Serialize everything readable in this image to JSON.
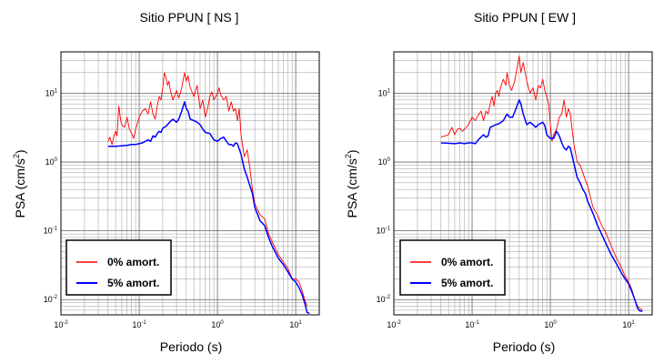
{
  "chart_data": [
    {
      "type": "line",
      "title": "Sitio PPUN [ NS ]",
      "xlabel": "Periodo (s)",
      "ylabel_main": "PSA (cm/s",
      "ylabel_sup": "2",
      "ylabel_close": ")",
      "x_scale": "log",
      "y_scale": "log",
      "xlim": [
        0.01,
        20
      ],
      "ylim": [
        0.006,
        40
      ],
      "grid": true,
      "legend_position": "bottom-left",
      "series": [
        {
          "name": "0% amort.",
          "color": "#ff0000",
          "points": [
            [
              0.04,
              2.0
            ],
            [
              0.042,
              2.3
            ],
            [
              0.045,
              1.8
            ],
            [
              0.048,
              2.5
            ],
            [
              0.05,
              2.8
            ],
            [
              0.052,
              2.4
            ],
            [
              0.055,
              6.5
            ],
            [
              0.058,
              4.0
            ],
            [
              0.06,
              3.5
            ],
            [
              0.065,
              3.2
            ],
            [
              0.07,
              4.5
            ],
            [
              0.075,
              3.0
            ],
            [
              0.08,
              2.6
            ],
            [
              0.085,
              2.2
            ],
            [
              0.09,
              3.0
            ],
            [
              0.1,
              4.5
            ],
            [
              0.11,
              5.5
            ],
            [
              0.12,
              6.0
            ],
            [
              0.13,
              5.0
            ],
            [
              0.14,
              7.5
            ],
            [
              0.15,
              5.0
            ],
            [
              0.16,
              4.2
            ],
            [
              0.17,
              6.5
            ],
            [
              0.18,
              9.0
            ],
            [
              0.19,
              8.0
            ],
            [
              0.2,
              12.0
            ],
            [
              0.21,
              20.0
            ],
            [
              0.22,
              17.0
            ],
            [
              0.23,
              13.0
            ],
            [
              0.24,
              15.0
            ],
            [
              0.25,
              11.0
            ],
            [
              0.27,
              8.0
            ],
            [
              0.3,
              11.0
            ],
            [
              0.32,
              8.5
            ],
            [
              0.35,
              12.0
            ],
            [
              0.38,
              20.0
            ],
            [
              0.4,
              15.0
            ],
            [
              0.42,
              18.0
            ],
            [
              0.45,
              12.0
            ],
            [
              0.5,
              9.0
            ],
            [
              0.55,
              13.0
            ],
            [
              0.6,
              6.0
            ],
            [
              0.65,
              8.0
            ],
            [
              0.7,
              4.5
            ],
            [
              0.75,
              6.0
            ],
            [
              0.8,
              9.0
            ],
            [
              0.85,
              10.5
            ],
            [
              0.9,
              8.0
            ],
            [
              0.95,
              9.0
            ],
            [
              1.0,
              10.0
            ],
            [
              1.05,
              12.0
            ],
            [
              1.1,
              9.5
            ],
            [
              1.2,
              8.0
            ],
            [
              1.3,
              9.0
            ],
            [
              1.4,
              5.5
            ],
            [
              1.5,
              7.5
            ],
            [
              1.6,
              5.5
            ],
            [
              1.7,
              6.0
            ],
            [
              1.8,
              4.0
            ],
            [
              1.9,
              6.0
            ],
            [
              2.0,
              2.5
            ],
            [
              2.2,
              1.2
            ],
            [
              2.4,
              1.5
            ],
            [
              2.6,
              0.8
            ],
            [
              2.8,
              0.4
            ],
            [
              3.0,
              0.25
            ],
            [
              3.5,
              0.17
            ],
            [
              4.0,
              0.15
            ],
            [
              4.5,
              0.09
            ],
            [
              5.0,
              0.07
            ],
            [
              6.0,
              0.045
            ],
            [
              7.0,
              0.035
            ],
            [
              8.0,
              0.028
            ],
            [
              9.0,
              0.02
            ],
            [
              10.0,
              0.02
            ],
            [
              11.0,
              0.018
            ],
            [
              12.0,
              0.014
            ],
            [
              13.0,
              0.01
            ],
            [
              14.0,
              0.008
            ]
          ]
        },
        {
          "name": "5% amort.",
          "color": "#0000ff",
          "points": [
            [
              0.04,
              1.7
            ],
            [
              0.05,
              1.7
            ],
            [
              0.06,
              1.72
            ],
            [
              0.07,
              1.75
            ],
            [
              0.08,
              1.8
            ],
            [
              0.09,
              1.8
            ],
            [
              0.1,
              1.85
            ],
            [
              0.11,
              1.9
            ],
            [
              0.12,
              2.0
            ],
            [
              0.13,
              2.1
            ],
            [
              0.14,
              2.0
            ],
            [
              0.15,
              2.4
            ],
            [
              0.16,
              2.3
            ],
            [
              0.17,
              2.6
            ],
            [
              0.18,
              2.8
            ],
            [
              0.19,
              2.7
            ],
            [
              0.2,
              3.1
            ],
            [
              0.22,
              3.3
            ],
            [
              0.25,
              3.9
            ],
            [
              0.27,
              4.2
            ],
            [
              0.3,
              3.8
            ],
            [
              0.32,
              4.2
            ],
            [
              0.35,
              5.5
            ],
            [
              0.38,
              7.5
            ],
            [
              0.4,
              6.0
            ],
            [
              0.42,
              5.5
            ],
            [
              0.45,
              4.2
            ],
            [
              0.5,
              4.0
            ],
            [
              0.55,
              3.8
            ],
            [
              0.6,
              3.5
            ],
            [
              0.65,
              3.0
            ],
            [
              0.7,
              2.7
            ],
            [
              0.8,
              2.6
            ],
            [
              0.9,
              2.1
            ],
            [
              1.0,
              2.0
            ],
            [
              1.1,
              2.2
            ],
            [
              1.2,
              2.3
            ],
            [
              1.3,
              2.0
            ],
            [
              1.4,
              1.8
            ],
            [
              1.5,
              1.8
            ],
            [
              1.6,
              1.7
            ],
            [
              1.7,
              1.9
            ],
            [
              1.8,
              1.85
            ],
            [
              2.0,
              1.3
            ],
            [
              2.2,
              0.8
            ],
            [
              2.4,
              0.6
            ],
            [
              2.6,
              0.45
            ],
            [
              2.8,
              0.35
            ],
            [
              3.0,
              0.22
            ],
            [
              3.5,
              0.14
            ],
            [
              4.0,
              0.12
            ],
            [
              4.5,
              0.08
            ],
            [
              5.0,
              0.06
            ],
            [
              6.0,
              0.04
            ],
            [
              7.0,
              0.032
            ],
            [
              8.0,
              0.025
            ],
            [
              9.0,
              0.02
            ],
            [
              10.0,
              0.018
            ],
            [
              11.0,
              0.015
            ],
            [
              12.0,
              0.012
            ],
            [
              13.0,
              0.009
            ],
            [
              14.0,
              0.0065
            ],
            [
              15.0,
              0.0063
            ]
          ]
        }
      ]
    },
    {
      "type": "line",
      "title": "Sitio PPUN [ EW ]",
      "xlabel": "Periodo (s)",
      "ylabel_main": "PSA (cm/s",
      "ylabel_sup": "2",
      "ylabel_close": ")",
      "x_scale": "log",
      "y_scale": "log",
      "xlim": [
        0.01,
        20
      ],
      "ylim": [
        0.006,
        40
      ],
      "grid": true,
      "legend_position": "bottom-left",
      "series": [
        {
          "name": "0% amort.",
          "color": "#ff0000",
          "points": [
            [
              0.04,
              2.3
            ],
            [
              0.045,
              2.4
            ],
            [
              0.05,
              2.5
            ],
            [
              0.055,
              3.2
            ],
            [
              0.06,
              2.5
            ],
            [
              0.065,
              3.0
            ],
            [
              0.07,
              3.1
            ],
            [
              0.075,
              2.8
            ],
            [
              0.08,
              3.0
            ],
            [
              0.09,
              3.5
            ],
            [
              0.1,
              4.5
            ],
            [
              0.11,
              4.0
            ],
            [
              0.12,
              4.8
            ],
            [
              0.13,
              5.5
            ],
            [
              0.14,
              4.0
            ],
            [
              0.15,
              5.5
            ],
            [
              0.16,
              5.0
            ],
            [
              0.17,
              7.0
            ],
            [
              0.18,
              9.0
            ],
            [
              0.19,
              6.5
            ],
            [
              0.2,
              10.0
            ],
            [
              0.21,
              11.0
            ],
            [
              0.22,
              9.0
            ],
            [
              0.23,
              12.0
            ],
            [
              0.25,
              16.0
            ],
            [
              0.27,
              13.0
            ],
            [
              0.28,
              20.0
            ],
            [
              0.3,
              13.0
            ],
            [
              0.32,
              11.0
            ],
            [
              0.35,
              15.0
            ],
            [
              0.38,
              25.0
            ],
            [
              0.4,
              35.0
            ],
            [
              0.42,
              20.0
            ],
            [
              0.45,
              28.0
            ],
            [
              0.5,
              15.0
            ],
            [
              0.55,
              10.0
            ],
            [
              0.6,
              12.0
            ],
            [
              0.65,
              8.0
            ],
            [
              0.7,
              13.0
            ],
            [
              0.75,
              12.0
            ],
            [
              0.8,
              16.0
            ],
            [
              0.85,
              11.0
            ],
            [
              0.9,
              9.0
            ],
            [
              0.95,
              7.0
            ],
            [
              1.0,
              3.5
            ],
            [
              1.05,
              2.0
            ],
            [
              1.1,
              2.5
            ],
            [
              1.2,
              3.0
            ],
            [
              1.3,
              4.5
            ],
            [
              1.4,
              5.0
            ],
            [
              1.5,
              8.0
            ],
            [
              1.6,
              4.5
            ],
            [
              1.7,
              6.0
            ],
            [
              1.8,
              5.0
            ],
            [
              2.0,
              1.8
            ],
            [
              2.2,
              1.0
            ],
            [
              2.4,
              0.9
            ],
            [
              2.6,
              0.7
            ],
            [
              2.8,
              0.55
            ],
            [
              3.0,
              0.45
            ],
            [
              3.5,
              0.22
            ],
            [
              4.0,
              0.17
            ],
            [
              4.5,
              0.12
            ],
            [
              5.0,
              0.1
            ],
            [
              6.0,
              0.06
            ],
            [
              7.0,
              0.04
            ],
            [
              8.0,
              0.03
            ],
            [
              9.0,
              0.022
            ],
            [
              10.0,
              0.018
            ],
            [
              11.0,
              0.014
            ],
            [
              12.0,
              0.01
            ],
            [
              13.0,
              0.008
            ],
            [
              14.0,
              0.0075
            ],
            [
              15.0,
              0.007
            ]
          ]
        },
        {
          "name": "5% amort.",
          "color": "#0000ff",
          "points": [
            [
              0.04,
              1.9
            ],
            [
              0.05,
              1.88
            ],
            [
              0.06,
              1.85
            ],
            [
              0.07,
              1.9
            ],
            [
              0.08,
              1.85
            ],
            [
              0.09,
              1.9
            ],
            [
              0.1,
              1.9
            ],
            [
              0.11,
              1.85
            ],
            [
              0.12,
              2.1
            ],
            [
              0.13,
              2.3
            ],
            [
              0.14,
              2.5
            ],
            [
              0.15,
              2.3
            ],
            [
              0.16,
              2.4
            ],
            [
              0.17,
              3.2
            ],
            [
              0.18,
              3.3
            ],
            [
              0.2,
              3.5
            ],
            [
              0.22,
              3.6
            ],
            [
              0.25,
              4.0
            ],
            [
              0.28,
              5.0
            ],
            [
              0.3,
              4.5
            ],
            [
              0.33,
              4.5
            ],
            [
              0.36,
              5.8
            ],
            [
              0.4,
              8.0
            ],
            [
              0.42,
              7.0
            ],
            [
              0.45,
              5.0
            ],
            [
              0.5,
              3.5
            ],
            [
              0.55,
              3.8
            ],
            [
              0.6,
              3.5
            ],
            [
              0.65,
              3.2
            ],
            [
              0.7,
              3.5
            ],
            [
              0.8,
              3.8
            ],
            [
              0.85,
              3.4
            ],
            [
              0.9,
              2.5
            ],
            [
              1.0,
              2.2
            ],
            [
              1.1,
              2.2
            ],
            [
              1.2,
              2.8
            ],
            [
              1.3,
              2.4
            ],
            [
              1.4,
              1.9
            ],
            [
              1.5,
              1.6
            ],
            [
              1.6,
              1.5
            ],
            [
              1.7,
              1.7
            ],
            [
              1.8,
              1.6
            ],
            [
              2.0,
              0.95
            ],
            [
              2.2,
              0.6
            ],
            [
              2.4,
              0.5
            ],
            [
              2.6,
              0.4
            ],
            [
              2.8,
              0.35
            ],
            [
              3.0,
              0.27
            ],
            [
              3.5,
              0.18
            ],
            [
              4.0,
              0.12
            ],
            [
              4.5,
              0.09
            ],
            [
              5.0,
              0.07
            ],
            [
              6.0,
              0.045
            ],
            [
              7.0,
              0.033
            ],
            [
              8.0,
              0.025
            ],
            [
              9.0,
              0.02
            ],
            [
              10.0,
              0.017
            ],
            [
              11.0,
              0.013
            ],
            [
              12.0,
              0.01
            ],
            [
              13.0,
              0.0075
            ],
            [
              14.0,
              0.0068
            ],
            [
              15.0,
              0.0068
            ]
          ]
        }
      ]
    }
  ]
}
